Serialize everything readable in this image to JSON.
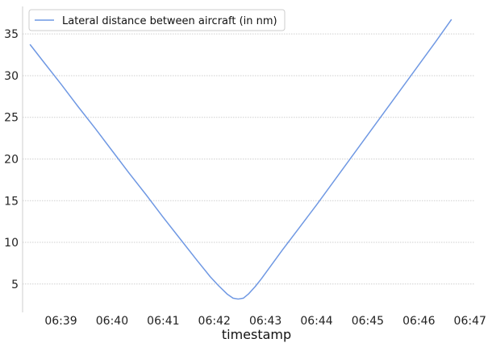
{
  "chart_data": {
    "type": "line",
    "title": "",
    "xlabel": "timestamp",
    "ylabel": "",
    "x_tick_labels": [
      "06:39",
      "06:40",
      "06:41",
      "06:42",
      "06:43",
      "06:44",
      "06:45",
      "06:46",
      "06:47"
    ],
    "y_tick_labels": [
      "5",
      "10",
      "15",
      "20",
      "25",
      "30",
      "35"
    ],
    "y_ticks": [
      5,
      10,
      15,
      20,
      25,
      30,
      35
    ],
    "xlim": [
      "06:38:15",
      "06:47:05"
    ],
    "ylim": [
      1.6,
      38.3
    ],
    "grid": "horizontal dotted",
    "legend": "top-left",
    "series": [
      {
        "name": "Lateral distance between aircraft (in nm)",
        "color": "#6f98e3",
        "x": [
          "06:38:24",
          "06:38:40",
          "06:39:00",
          "06:39:20",
          "06:39:40",
          "06:40:00",
          "06:40:20",
          "06:40:40",
          "06:41:00",
          "06:41:20",
          "06:41:40",
          "06:41:55",
          "06:42:05",
          "06:42:15",
          "06:42:22",
          "06:42:28",
          "06:42:34",
          "06:42:40",
          "06:42:48",
          "06:42:55",
          "06:43:05",
          "06:43:20",
          "06:43:40",
          "06:44:00",
          "06:44:20",
          "06:44:40",
          "06:45:00",
          "06:45:20",
          "06:45:40",
          "06:46:00",
          "06:46:20",
          "06:46:38"
        ],
        "values": [
          33.7,
          31.6,
          29.0,
          26.3,
          23.7,
          21.0,
          18.3,
          15.7,
          13.0,
          10.4,
          7.8,
          5.9,
          4.8,
          3.8,
          3.3,
          3.2,
          3.3,
          3.8,
          4.7,
          5.6,
          7.0,
          9.1,
          11.8,
          14.5,
          17.3,
          20.1,
          22.9,
          25.7,
          28.5,
          31.3,
          34.1,
          36.7
        ]
      }
    ]
  }
}
